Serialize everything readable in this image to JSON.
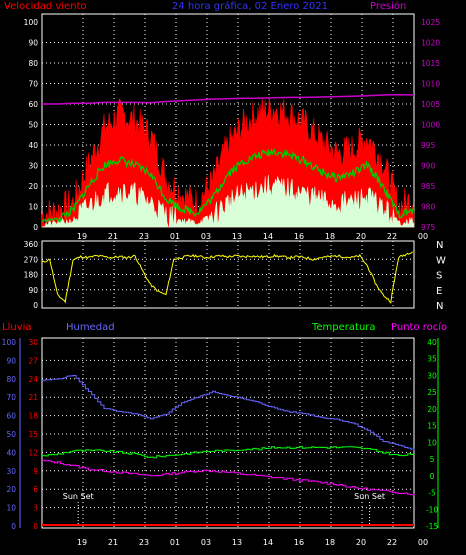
{
  "colors": {
    "background": "#000000",
    "frame": "#ffffff",
    "grid": "#ffffff",
    "wind_gust": "#ff0000",
    "wind_avg": "#00cc00",
    "wind_min": "#d8ffd8",
    "pressure": "#cc00cc",
    "direction": "#ffff00",
    "rain": "#ff0000",
    "humidity": "#6666ff",
    "temperature": "#00ff00",
    "dewpoint": "#ff00ff",
    "title": "#3333ff",
    "sunset_text": "#ffffff"
  },
  "chart_data": [
    {
      "type": "line",
      "title": "24 hora gráfica, 02 Enero 2021",
      "ylabel_left": "Velocidad viento",
      "ylabel_right": "Presión",
      "y_left_ticks": [
        "100",
        "90",
        "80",
        "70",
        "60",
        "50",
        "40",
        "30",
        "20",
        "10",
        "0"
      ],
      "y_right_ticks": [
        "1025",
        "1020",
        "1015",
        "1010",
        "1005",
        "1000",
        "995",
        "990",
        "985",
        "980",
        "975"
      ],
      "ylim_left": [
        0,
        100
      ],
      "ylim_right": [
        975,
        1025
      ],
      "x_ticks": [
        "19",
        "21",
        "23",
        "01",
        "03",
        "13",
        "14",
        "16",
        "18",
        "20",
        "22",
        "00"
      ],
      "grid": true,
      "x_hours": [
        0,
        1,
        2,
        3,
        4,
        5,
        6,
        7,
        8,
        9,
        10,
        11,
        12,
        13,
        14,
        15,
        16,
        17,
        18,
        19,
        20,
        21,
        22,
        23,
        24
      ],
      "series": [
        {
          "key": "gust",
          "values": [
            6,
            8,
            12,
            30,
            48,
            55,
            52,
            45,
            24,
            16,
            12,
            22,
            40,
            50,
            56,
            58,
            55,
            50,
            42,
            36,
            38,
            44,
            32,
            10,
            14
          ]
        },
        {
          "key": "avg",
          "values": [
            3,
            4,
            8,
            20,
            30,
            33,
            30,
            26,
            14,
            9,
            7,
            14,
            26,
            32,
            35,
            37,
            35,
            32,
            27,
            24,
            26,
            30,
            20,
            6,
            8
          ]
        },
        {
          "key": "min",
          "values": [
            1,
            2,
            3,
            10,
            16,
            18,
            16,
            12,
            6,
            3,
            2,
            5,
            12,
            16,
            19,
            20,
            18,
            16,
            13,
            11,
            12,
            15,
            9,
            2,
            3
          ]
        },
        {
          "key": "pressure",
          "values": [
            1005,
            1005,
            1005.2,
            1005.2,
            1005.4,
            1005.4,
            1005.4,
            1005.3,
            1005.6,
            1005.8,
            1006,
            1006.2,
            1006.3,
            1006.4,
            1006.4,
            1006.5,
            1006.6,
            1006.6,
            1006.7,
            1006.8,
            1006.9,
            1007,
            1007.2,
            1007.3,
            1007.2
          ]
        }
      ]
    },
    {
      "type": "line",
      "y_left_ticks": [
        "360",
        "270",
        "180",
        "90",
        "0"
      ],
      "ylim": [
        0,
        360
      ],
      "direction_labels": [
        "N",
        "W",
        "S",
        "E",
        "N"
      ],
      "x_hours": [
        0,
        0.5,
        1,
        1.5,
        2,
        2.5,
        3,
        3.5,
        4,
        4.5,
        5,
        5.5,
        6,
        6.5,
        7,
        7.5,
        8,
        8.5,
        9,
        9.5,
        10,
        10.5,
        11,
        11.5,
        12,
        12.5,
        13,
        13.5,
        14,
        14.5,
        15,
        15.5,
        16,
        16.5,
        17,
        17.5,
        18,
        18.5,
        19,
        19.5,
        20,
        20.5,
        21,
        21.5,
        22,
        22.5,
        23,
        23.5,
        24
      ],
      "values": [
        250,
        270,
        60,
        20,
        265,
        285,
        280,
        290,
        285,
        280,
        285,
        280,
        290,
        200,
        120,
        80,
        60,
        270,
        280,
        290,
        290,
        280,
        285,
        290,
        285,
        290,
        285,
        290,
        285,
        285,
        290,
        285,
        280,
        285,
        280,
        270,
        280,
        285,
        290,
        285,
        280,
        290,
        230,
        130,
        60,
        20,
        280,
        300,
        320
      ]
    },
    {
      "type": "line",
      "ylabel_left_1": "Lluvia",
      "ylabel_left_2": "Humedad",
      "ylabel_right_1": "Temperatura",
      "ylabel_right_2": "Punto rocío",
      "y_humidity_ticks": [
        "100",
        "90",
        "80",
        "70",
        "60",
        "50",
        "40",
        "30",
        "20",
        "10",
        "0"
      ],
      "y_rain_ticks": [
        "30",
        "27",
        "24",
        "21",
        "18",
        "15",
        "12",
        "9",
        "6",
        "3",
        "0"
      ],
      "y_temp_ticks": [
        "40",
        "35",
        "30",
        "25",
        "20",
        "15",
        "10",
        "5",
        "0",
        "-5",
        "-10",
        "-15"
      ],
      "ylim_humidity": [
        0,
        100
      ],
      "ylim_temp": [
        -15,
        40
      ],
      "x_ticks": [
        "19",
        "21",
        "23",
        "01",
        "03",
        "13",
        "14",
        "16",
        "18",
        "20",
        "22",
        "00"
      ],
      "annotations": [
        "Sun Set",
        "Sun Set"
      ],
      "annotation_hours": [
        0.4,
        19.2
      ],
      "x_hours": [
        0,
        1,
        2,
        3,
        4,
        5,
        6,
        7,
        8,
        9,
        10,
        11,
        12,
        13,
        14,
        15,
        16,
        17,
        18,
        19,
        20,
        21,
        22,
        23,
        24
      ],
      "series": [
        {
          "key": "humidity",
          "values": [
            79,
            80,
            82,
            73,
            64,
            62,
            61,
            58,
            61,
            67,
            70,
            73,
            71,
            69,
            67,
            64,
            62,
            61,
            59,
            58,
            56,
            52,
            46,
            44,
            41
          ]
        },
        {
          "key": "temperature",
          "values": [
            6,
            6.5,
            7.5,
            7.5,
            7.5,
            7,
            6.5,
            5.5,
            6,
            6.5,
            7,
            7.5,
            7.5,
            8,
            8,
            8.5,
            8.5,
            8.5,
            8.5,
            8.5,
            8.5,
            8,
            7,
            6,
            6.5
          ]
        },
        {
          "key": "dewpoint",
          "values": [
            4.5,
            4,
            3,
            2,
            1.5,
            1,
            0.5,
            0,
            0.5,
            1,
            1.5,
            1.5,
            1,
            0.5,
            0,
            -0.5,
            -1,
            -1.5,
            -2,
            -2.5,
            -3.5,
            -4,
            -4.5,
            -5,
            -5.5
          ]
        },
        {
          "key": "rain",
          "values": [
            0,
            0,
            0,
            0,
            0,
            0,
            0,
            0,
            0,
            0,
            0,
            0,
            0,
            0,
            0,
            0,
            0,
            0,
            0,
            0,
            0,
            0,
            0,
            0,
            0
          ]
        }
      ]
    }
  ]
}
